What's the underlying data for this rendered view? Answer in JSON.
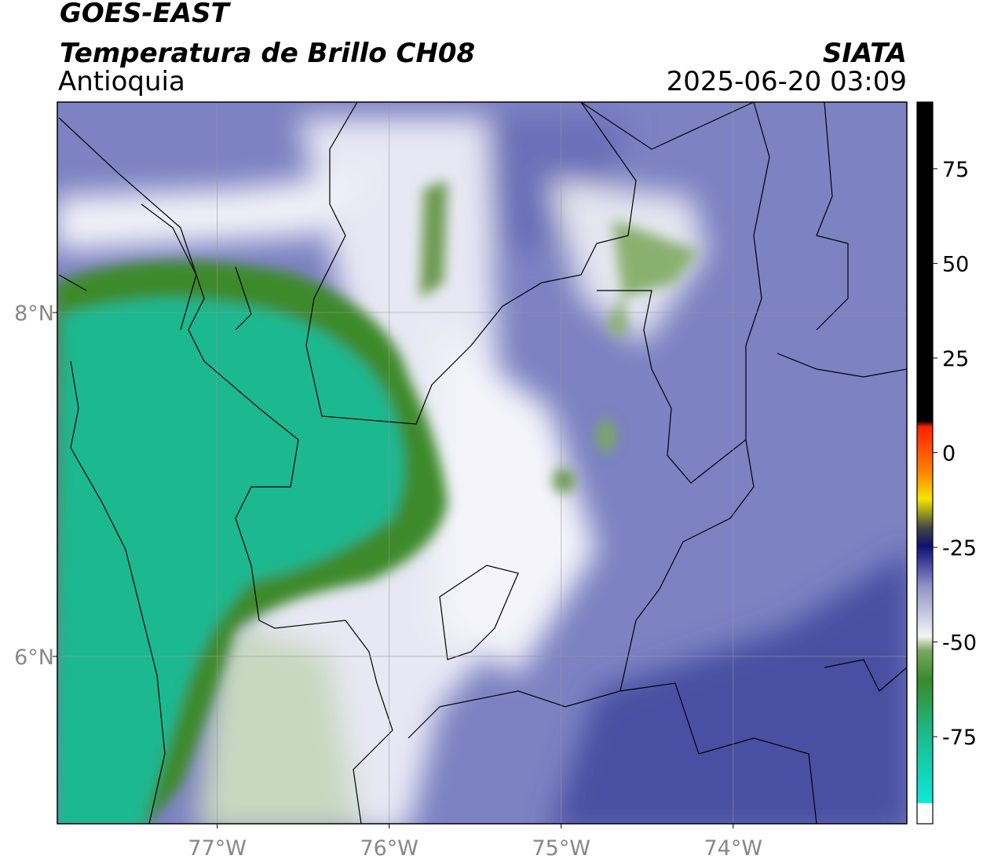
{
  "header": {
    "satellite": "GOES-EAST",
    "product": "Temperatura de Brillo CH08",
    "region": "Antioquia",
    "source": "SIATA",
    "datetime": "2025-06-20 03:09"
  },
  "map": {
    "lon_range": [
      -77.93,
      -72.99
    ],
    "lat_range": [
      5.027,
      9.224
    ],
    "lon_ticks": [
      {
        "value": -77,
        "label": "77°W"
      },
      {
        "value": -76,
        "label": "76°W"
      },
      {
        "value": -75,
        "label": "75°W"
      },
      {
        "value": -74,
        "label": "74°W"
      }
    ],
    "lat_ticks": [
      {
        "value": 8,
        "label": "8°N"
      },
      {
        "value": 6,
        "label": "6°N"
      }
    ]
  },
  "colorbar": {
    "range": [
      -98,
      92.6
    ],
    "ticks": [
      75,
      50,
      25,
      0,
      -25,
      -50,
      -75
    ]
  }
}
